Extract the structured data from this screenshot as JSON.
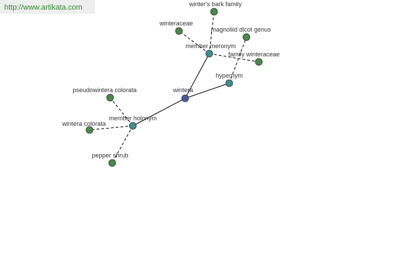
{
  "header": {
    "url": "http://www.artikata.com"
  },
  "nodes": [
    {
      "label": "wintera"
    },
    {
      "label": "member meronym"
    },
    {
      "label": "hypernym"
    },
    {
      "label": "member holonym"
    },
    {
      "label": "winter's bark family"
    },
    {
      "label": "winteraceae"
    },
    {
      "label": "family winteraceae"
    },
    {
      "label": "magnoliid dicot genus"
    },
    {
      "label": "pseudowintera colorata"
    },
    {
      "label": "wintera colorata"
    },
    {
      "label": "pepper shrub"
    }
  ]
}
